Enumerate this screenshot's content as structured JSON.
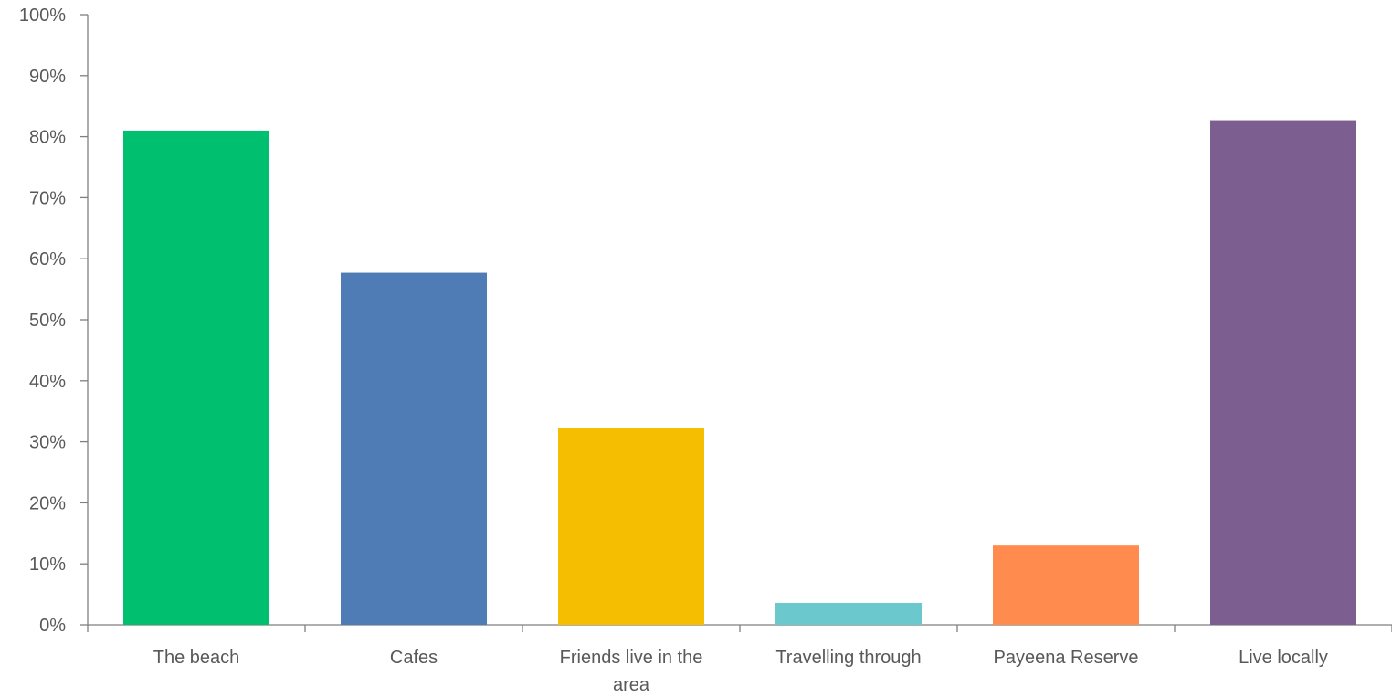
{
  "chart_data": {
    "type": "bar",
    "categories": [
      "The beach",
      "Cafes",
      "Friends live in the area",
      "Travelling through",
      "Payeena Reserve",
      "Live locally"
    ],
    "category_label_lines": [
      [
        "The beach"
      ],
      [
        "Cafes"
      ],
      [
        "Friends live in the",
        "area"
      ],
      [
        "Travelling through"
      ],
      [
        "Payeena Reserve"
      ],
      [
        "Live locally"
      ]
    ],
    "values": [
      81,
      57.7,
      32.2,
      3.6,
      13,
      82.7
    ],
    "value_unit": "%",
    "colors": [
      "#00BF6F",
      "#507CB6",
      "#F6BE00",
      "#6BC8CD",
      "#FF8B4F",
      "#7D5E90"
    ],
    "ylim": [
      0,
      100
    ],
    "yticks": [
      "0%",
      "10%",
      "20%",
      "30%",
      "40%",
      "50%",
      "60%",
      "70%",
      "80%",
      "90%",
      "100%"
    ],
    "title": "",
    "xlabel": "",
    "ylabel": "",
    "grid": false,
    "legend": "none"
  }
}
